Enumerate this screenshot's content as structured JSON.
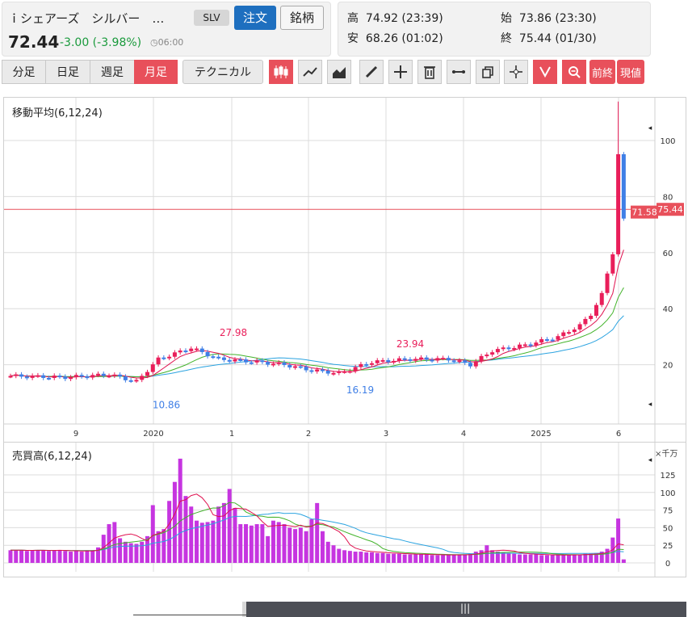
{
  "header": {
    "name": "ｉシェアーズ　シルバー　…",
    "ticker": "SLV",
    "order_label": "注文",
    "symbol_label": "銘柄",
    "price": "72.44",
    "change": "-3.00 (-3.98%)",
    "time": "06:00"
  },
  "ohlc": {
    "high_label": "高",
    "high": "74.92 (23:39)",
    "open_label": "始",
    "open": "73.86 (23:30)",
    "low_label": "安",
    "low": "68.26 (01:02)",
    "close_label": "終",
    "close": "75.44 (01/30)"
  },
  "toolbar": {
    "periods": [
      "分足",
      "日足",
      "週足",
      "月足"
    ],
    "technical_label": "テクニカル",
    "prev_close_label": "前終",
    "current_label": "現値"
  },
  "colors": {
    "up": "#e91e5a",
    "down": "#3f7fe6",
    "ma6": "#e0114f",
    "ma12": "#42b32a",
    "ma24": "#2ba3e0",
    "volume": "#c635e0"
  },
  "chart_data": [
    {
      "type": "candlestick",
      "title": "移動平均(6,12,24)",
      "ylim": [
        0,
        112
      ],
      "y_ticks": [
        20,
        40,
        60,
        80,
        100
      ],
      "x_tick_labels": [
        "9",
        "2020",
        "1",
        "2",
        "3",
        "4",
        "2025",
        "6"
      ],
      "hline": 75.44,
      "hline_label": "75.44",
      "last_price_label": "71.58",
      "annotations": [
        {
          "text": "27.98",
          "value": 27.98,
          "kind": "high"
        },
        {
          "text": "23.94",
          "value": 23.94,
          "kind": "high"
        },
        {
          "text": "10.86",
          "value": 10.86,
          "kind": "low"
        },
        {
          "text": "16.19",
          "value": 16.19,
          "kind": "low"
        }
      ],
      "ma_labels": [
        "6",
        "12",
        "24"
      ]
    },
    {
      "type": "bar",
      "title": "売買高(6,12,24)",
      "unit": "×千万",
      "ylim": [
        0,
        150
      ],
      "y_ticks": [
        0,
        25,
        50,
        75,
        100,
        125
      ],
      "x_tick_labels": [
        "9",
        "2020",
        "1",
        "2",
        "3",
        "4",
        "2025",
        "6"
      ],
      "values": [
        18,
        18,
        18,
        17,
        18,
        18,
        18,
        17,
        18,
        18,
        17,
        16,
        17,
        16,
        18,
        18,
        22,
        40,
        55,
        58,
        35,
        30,
        28,
        27,
        30,
        38,
        82,
        45,
        48,
        88,
        115,
        148,
        95,
        80,
        60,
        57,
        58,
        60,
        80,
        85,
        105,
        78,
        55,
        55,
        53,
        55,
        55,
        38,
        60,
        58,
        55,
        50,
        48,
        50,
        45,
        62,
        85,
        45,
        30,
        25,
        20,
        18,
        17,
        16,
        16,
        15,
        15,
        14,
        14,
        13,
        13,
        13,
        12,
        12,
        12,
        12,
        12,
        11,
        11,
        11,
        11,
        12,
        12,
        12,
        13,
        16,
        18,
        25,
        18,
        16,
        15,
        14,
        13,
        12,
        12,
        12,
        12,
        11,
        11,
        11,
        11,
        11,
        12,
        12,
        12,
        13,
        13,
        14,
        16,
        20,
        36,
        63,
        5
      ]
    }
  ]
}
